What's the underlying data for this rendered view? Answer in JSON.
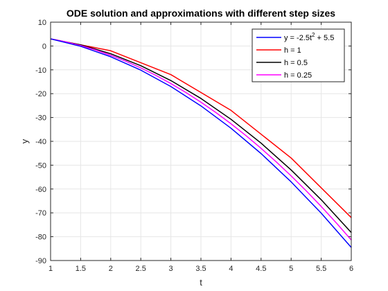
{
  "chart_data": {
    "type": "line",
    "title": "ODE solution and approximations with different step sizes",
    "xlabel": "t",
    "ylabel": "y",
    "xlim": [
      1,
      6
    ],
    "ylim": [
      -90,
      10
    ],
    "xticks": [
      "1",
      "1.5",
      "2",
      "2.5",
      "3",
      "3.5",
      "4",
      "4.5",
      "5",
      "5.5",
      "6"
    ],
    "yticks": [
      "10",
      "0",
      "-10",
      "-20",
      "-30",
      "-40",
      "-50",
      "-60",
      "-70",
      "-80",
      "-90"
    ],
    "grid": true,
    "legend_position": "top-right",
    "legend_exact": {
      "prefix": "y = -2.5t",
      "sup": "2",
      "suffix": " + 5.5"
    },
    "series": [
      {
        "name": "y = -2.5t^2 + 5.5",
        "color": "#0000ff",
        "x": [
          1,
          1.5,
          2,
          2.5,
          3,
          3.5,
          4,
          4.5,
          5,
          5.5,
          6
        ],
        "y": [
          3,
          -0.125,
          -4.5,
          -10.125,
          -17,
          -25.125,
          -34.5,
          -45.125,
          -57,
          -70.125,
          -84.5
        ]
      },
      {
        "name": "h = 1",
        "color": "#ff0000",
        "x": [
          1,
          2,
          3,
          4,
          5,
          6
        ],
        "y": [
          3,
          -2,
          -12,
          -27,
          -47,
          -72
        ]
      },
      {
        "name": "h = 0.5",
        "color": "#000000",
        "x": [
          1,
          1.5,
          2,
          2.5,
          3,
          3.5,
          4,
          4.5,
          5,
          5.5,
          6
        ],
        "y": [
          3,
          0.5,
          -3.25,
          -8.25,
          -14.5,
          -22,
          -30.75,
          -40.75,
          -52,
          -64.5,
          -78.25
        ]
      },
      {
        "name": "h = 0.25",
        "color": "#ff00ff",
        "x": [
          1,
          1.25,
          1.5,
          1.75,
          2,
          2.25,
          2.5,
          2.75,
          3,
          3.25,
          3.5,
          3.75,
          4,
          4.25,
          4.5,
          4.75,
          5,
          5.25,
          5.5,
          5.75,
          6
        ],
        "y": [
          3,
          1.75,
          0.1875,
          -1.6875,
          -3.875,
          -6.375,
          -9.1875,
          -12.3125,
          -15.75,
          -19.5,
          -23.5625,
          -27.9375,
          -32.625,
          -37.625,
          -42.9375,
          -48.5625,
          -54.5,
          -60.75,
          -67.3125,
          -74.1875,
          -81.375
        ]
      }
    ]
  }
}
